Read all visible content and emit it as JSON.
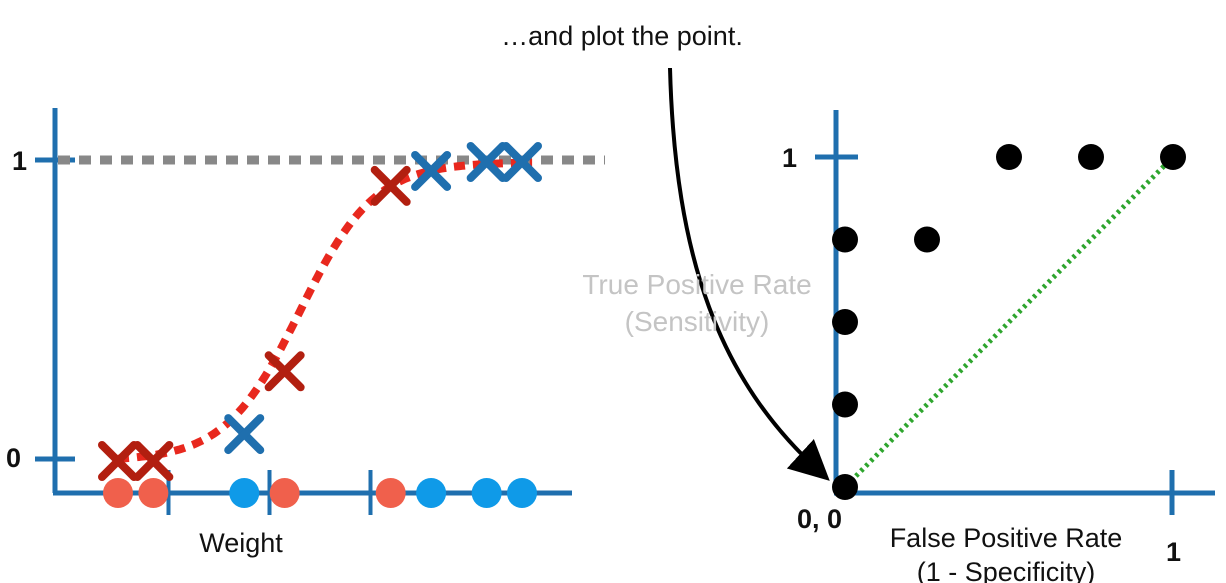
{
  "caption": "…and plot the point.",
  "colors": {
    "axis": "#1f6fae",
    "sigmoid": "#e8281e",
    "threshold": "#888888",
    "obese_x": "#1f6fae",
    "not_obese_x": "#b21f10",
    "obese_dot": "#0f9ae8",
    "not_obese_dot": "#f0604c",
    "roc_point": "#000000",
    "diagonal": "#2ea52e",
    "faded_label": "#c4c4c4",
    "arrow": "#000000"
  },
  "chart_data": [
    {
      "type": "scatter",
      "xlabel": "Weight",
      "ylabel": "",
      "ytick_labels": [
        "0",
        "1"
      ],
      "ylim": [
        0,
        1
      ],
      "threshold_line_y": 1,
      "curve": "logistic",
      "samples": [
        {
          "x": 1.0,
          "class": "not_obese",
          "y": 0.0
        },
        {
          "x": 1.7,
          "class": "not_obese",
          "y": 0.0
        },
        {
          "x": 3.5,
          "class": "obese",
          "y": 0.09
        },
        {
          "x": 4.3,
          "class": "not_obese",
          "y": 0.3
        },
        {
          "x": 6.4,
          "class": "not_obese",
          "y": 0.92
        },
        {
          "x": 7.2,
          "class": "obese",
          "y": 0.97
        },
        {
          "x": 8.3,
          "class": "obese",
          "y": 1.0
        },
        {
          "x": 9.0,
          "class": "obese",
          "y": 1.0
        }
      ],
      "threshold_ticks": [
        2.0,
        4.0,
        6.0
      ]
    },
    {
      "type": "scatter",
      "xlabel": "False Positive Rate",
      "xlabel_sub": "(1 - Specificity)",
      "ylabel": "True Positive Rate",
      "ylabel_sub": "(Sensitivity)",
      "origin_label": "0, 0",
      "xtick_label": "1",
      "ytick_label": "1",
      "xlim": [
        0,
        1
      ],
      "ylim": [
        0,
        1
      ],
      "points": [
        {
          "x": 0.0,
          "y": 0.0
        },
        {
          "x": 0.0,
          "y": 0.25
        },
        {
          "x": 0.0,
          "y": 0.5
        },
        {
          "x": 0.0,
          "y": 0.75
        },
        {
          "x": 0.25,
          "y": 0.75
        },
        {
          "x": 0.5,
          "y": 1.0
        },
        {
          "x": 0.75,
          "y": 1.0
        },
        {
          "x": 1.0,
          "y": 1.0
        }
      ],
      "diagonal": [
        [
          0,
          0
        ],
        [
          1,
          1
        ]
      ]
    }
  ]
}
